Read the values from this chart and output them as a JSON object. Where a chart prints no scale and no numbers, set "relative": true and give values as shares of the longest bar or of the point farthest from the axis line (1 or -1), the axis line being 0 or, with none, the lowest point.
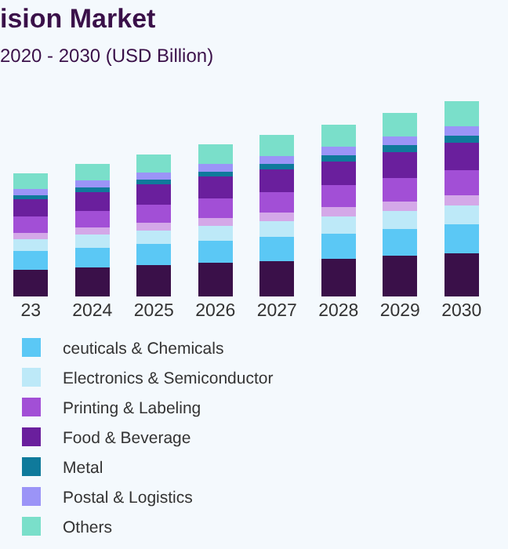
{
  "chart_data": {
    "type": "bar",
    "title": "ision Market",
    "subtitle": "2020 - 2030 (USD Billion)",
    "categories": [
      "23",
      "2024",
      "2025",
      "2026",
      "2027",
      "2028",
      "2029",
      "2030"
    ],
    "stacked": true,
    "relative": true,
    "legend": "bottom",
    "grid": false,
    "series": [
      {
        "color": "#3a1049",
        "values": [
          0.138,
          0.15,
          0.16,
          0.172,
          0.182,
          0.193,
          0.207,
          0.222
        ]
      },
      {
        "name": "ceuticals & Chemicals",
        "color": "#5bc8f5",
        "values": [
          0.095,
          0.1,
          0.108,
          0.114,
          0.124,
          0.13,
          0.139,
          0.147
        ]
      },
      {
        "name": "Electronics & Semiconductor",
        "color": "#bde9f8",
        "values": [
          0.06,
          0.067,
          0.07,
          0.077,
          0.08,
          0.087,
          0.093,
          0.099
        ]
      },
      {
        "color": "#d4a8e8",
        "values": [
          0.034,
          0.035,
          0.039,
          0.039,
          0.045,
          0.047,
          0.049,
          0.05
        ]
      },
      {
        "name": "Printing & Labeling",
        "color": "#a24fd6",
        "values": [
          0.082,
          0.087,
          0.094,
          0.102,
          0.105,
          0.112,
          0.12,
          0.13
        ]
      },
      {
        "name": "Food & Beverage",
        "color": "#6a1f9d",
        "values": [
          0.089,
          0.097,
          0.102,
          0.109,
          0.115,
          0.124,
          0.132,
          0.14
        ]
      },
      {
        "name": "Metal",
        "color": "#0f7a9b",
        "values": [
          0.022,
          0.023,
          0.027,
          0.027,
          0.03,
          0.03,
          0.034,
          0.035
        ]
      },
      {
        "name": "Postal & Logistics",
        "color": "#9b94f7",
        "values": [
          0.032,
          0.034,
          0.035,
          0.04,
          0.04,
          0.045,
          0.045,
          0.05
        ]
      },
      {
        "name": "Others",
        "color": "#7adfca",
        "values": [
          0.08,
          0.087,
          0.094,
          0.099,
          0.107,
          0.112,
          0.12,
          0.127
        ]
      }
    ]
  }
}
